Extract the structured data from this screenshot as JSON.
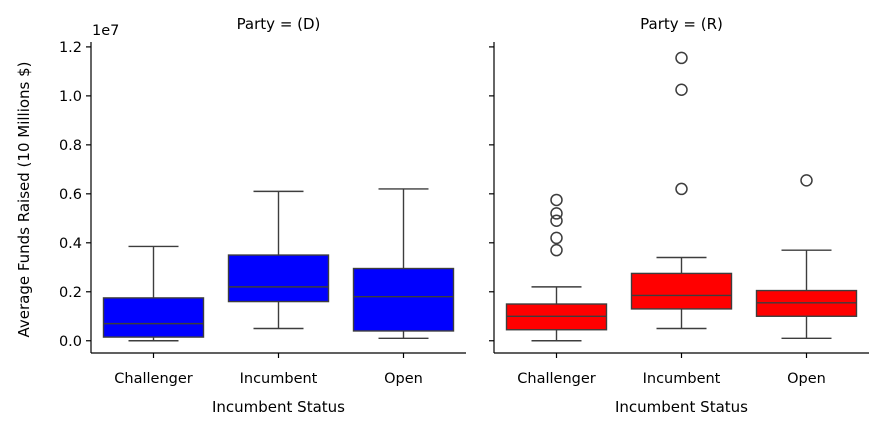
{
  "chart_data": {
    "type": "box",
    "ylabel": "Average Funds Raised (10 Millions $)",
    "y_offset_text": "1e7",
    "ylim": [
      -0.05,
      1.22
    ],
    "y_ticks": [
      0.0,
      0.2,
      0.4,
      0.6,
      0.8,
      1.0,
      1.2
    ],
    "y_tick_labels": [
      "0.0",
      "0.2",
      "0.4",
      "0.6",
      "0.8",
      "1.0",
      "1.2"
    ],
    "y_scale_note": "values in units of 1e7",
    "grid": false,
    "panels": [
      {
        "title": "Party = (D)",
        "xlabel": "Incumbent Status",
        "color": "#0000ff",
        "categories": [
          "Challenger",
          "Incumbent",
          "Open"
        ],
        "boxes": [
          {
            "category": "Challenger",
            "whisker_low": 0.0,
            "q1": 0.015,
            "median": 0.07,
            "q3": 0.175,
            "whisker_high": 0.385,
            "outliers": []
          },
          {
            "category": "Incumbent",
            "whisker_low": 0.05,
            "q1": 0.16,
            "median": 0.22,
            "q3": 0.35,
            "whisker_high": 0.61,
            "outliers": []
          },
          {
            "category": "Open",
            "whisker_low": 0.01,
            "q1": 0.04,
            "median": 0.18,
            "q3": 0.295,
            "whisker_high": 0.62,
            "outliers": []
          }
        ]
      },
      {
        "title": "Party = (R)",
        "xlabel": "Incumbent Status",
        "color": "#ff0000",
        "categories": [
          "Challenger",
          "Incumbent",
          "Open"
        ],
        "boxes": [
          {
            "category": "Challenger",
            "whisker_low": 0.0,
            "q1": 0.045,
            "median": 0.1,
            "q3": 0.15,
            "whisker_high": 0.22,
            "outliers": [
              0.37,
              0.42,
              0.49,
              0.52,
              0.575
            ]
          },
          {
            "category": "Incumbent",
            "whisker_low": 0.05,
            "q1": 0.13,
            "median": 0.185,
            "q3": 0.275,
            "whisker_high": 0.34,
            "outliers": [
              0.62,
              1.025,
              1.155
            ]
          },
          {
            "category": "Open",
            "whisker_low": 0.01,
            "q1": 0.1,
            "median": 0.155,
            "q3": 0.205,
            "whisker_high": 0.37,
            "outliers": [
              0.655
            ]
          }
        ]
      }
    ]
  }
}
